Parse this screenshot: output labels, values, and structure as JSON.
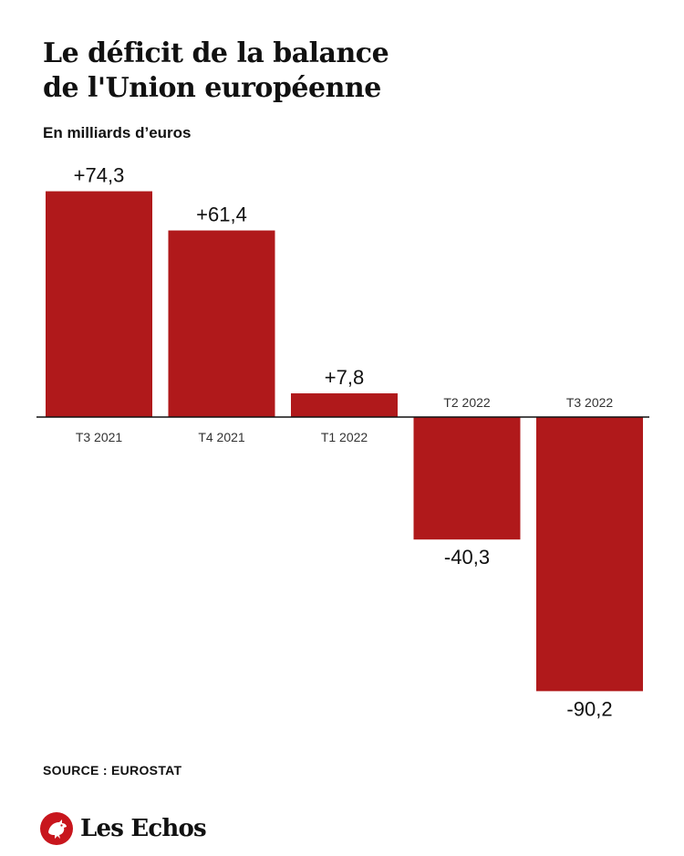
{
  "header": {
    "title_line1": "Le déficit de la balance",
    "title_line2": "de l'Union européenne",
    "subtitle": "En milliards d’euros"
  },
  "chart_data": {
    "type": "bar",
    "categories": [
      "T3 2021",
      "T4 2021",
      "T1 2022",
      "T2 2022",
      "T3 2022"
    ],
    "values": [
      74.3,
      61.4,
      7.8,
      -40.3,
      -90.2
    ],
    "value_labels": [
      "+74,3",
      "+61,4",
      "+7,8",
      "-40,3",
      "-90,2"
    ],
    "title": "Le déficit de la balance de l'Union européenne",
    "ylabel": "En milliards d’euros",
    "ylim": [
      -90.2,
      74.3
    ],
    "grid": false,
    "bar_color": "#b0191b",
    "axis_color": "#111111"
  },
  "footer": {
    "source": "SOURCE : EUROSTAT",
    "brand": "Les Echos",
    "brand_logo_icon": "les-echos-rooster-logo-icon",
    "brand_color": "#c8161d"
  }
}
